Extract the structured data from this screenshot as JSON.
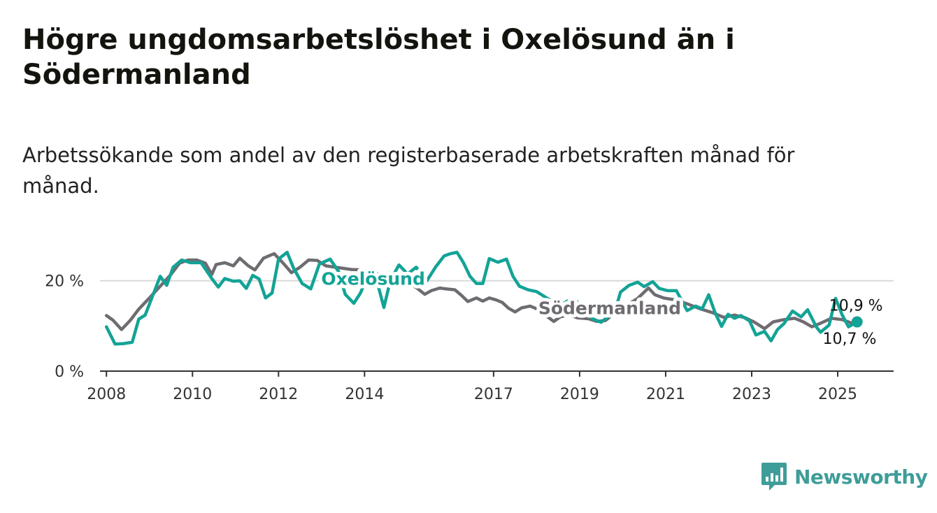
{
  "title": "Högre ungdomsarbetslöshet i Oxelösund än i Södermanland",
  "subtitle": "Arbetssökande som andel av den registerbaserade arbetskraften månad för månad.",
  "logo": {
    "name": "Newsworthy",
    "icon": "bar-chart-bubble-icon",
    "color": "#3f9d99"
  },
  "chart_data": {
    "type": "line",
    "xlabel": "",
    "ylabel": "",
    "xlim": [
      2007.85,
      2026.3
    ],
    "ylim": [
      0,
      28
    ],
    "grid": true,
    "y_ticks": [
      {
        "value": 0,
        "label": "0 %"
      },
      {
        "value": 20,
        "label": "20 %"
      }
    ],
    "x_ticks": [
      {
        "value": 2008.0,
        "label": "2008"
      },
      {
        "value": 2010.0,
        "label": "2010"
      },
      {
        "value": 2012.0,
        "label": "2012"
      },
      {
        "value": 2014.0,
        "label": "2014"
      },
      {
        "value": 2017.0,
        "label": "2017"
      },
      {
        "value": 2019.0,
        "label": "2019"
      },
      {
        "value": 2021.0,
        "label": "2021"
      },
      {
        "value": 2023.0,
        "label": "2023"
      },
      {
        "value": 2025.0,
        "label": "2025"
      }
    ],
    "series": [
      {
        "name": "Södermanland",
        "color": "#6f6c71",
        "end_label": "10,7 %",
        "points": [
          [
            2008.0,
            12.3
          ],
          [
            2008.15,
            11.3
          ],
          [
            2008.35,
            9.2
          ],
          [
            2008.55,
            11.2
          ],
          [
            2008.75,
            13.7
          ],
          [
            2009.0,
            16.2
          ],
          [
            2009.25,
            18.8
          ],
          [
            2009.5,
            21.4
          ],
          [
            2009.7,
            23.9
          ],
          [
            2009.9,
            24.6
          ],
          [
            2010.1,
            24.6
          ],
          [
            2010.3,
            23.9
          ],
          [
            2010.45,
            21.4
          ],
          [
            2010.55,
            23.6
          ],
          [
            2010.75,
            24.0
          ],
          [
            2010.95,
            23.3
          ],
          [
            2011.1,
            25.0
          ],
          [
            2011.3,
            23.3
          ],
          [
            2011.45,
            22.4
          ],
          [
            2011.65,
            25.0
          ],
          [
            2011.9,
            26.0
          ],
          [
            2012.1,
            24.0
          ],
          [
            2012.3,
            21.8
          ],
          [
            2012.5,
            23.0
          ],
          [
            2012.7,
            24.6
          ],
          [
            2012.9,
            24.5
          ],
          [
            2013.1,
            23.3
          ],
          [
            2013.4,
            22.9
          ],
          [
            2013.7,
            22.5
          ],
          [
            2014.0,
            22.4
          ],
          [
            2014.3,
            21.6
          ],
          [
            2014.6,
            21.0
          ],
          [
            2014.9,
            20.0
          ],
          [
            2015.2,
            18.5
          ],
          [
            2015.4,
            17.0
          ],
          [
            2015.55,
            17.8
          ],
          [
            2015.75,
            18.4
          ],
          [
            2015.9,
            18.2
          ],
          [
            2016.1,
            18.0
          ],
          [
            2016.25,
            16.8
          ],
          [
            2016.4,
            15.4
          ],
          [
            2016.6,
            16.2
          ],
          [
            2016.75,
            15.5
          ],
          [
            2016.9,
            16.2
          ],
          [
            2017.05,
            15.8
          ],
          [
            2017.2,
            15.2
          ],
          [
            2017.35,
            13.9
          ],
          [
            2017.5,
            13.1
          ],
          [
            2017.65,
            14.0
          ],
          [
            2017.85,
            14.4
          ],
          [
            2018.0,
            13.8
          ],
          [
            2018.2,
            12.4
          ],
          [
            2018.4,
            11.0
          ],
          [
            2018.55,
            12.0
          ],
          [
            2018.75,
            12.5
          ],
          [
            2018.95,
            11.8
          ],
          [
            2019.2,
            11.6
          ],
          [
            2019.4,
            11.0
          ],
          [
            2019.6,
            11.2
          ],
          [
            2019.8,
            12.7
          ],
          [
            2020.1,
            14.6
          ],
          [
            2020.35,
            16.1
          ],
          [
            2020.6,
            18.4
          ],
          [
            2020.75,
            16.9
          ],
          [
            2020.95,
            16.2
          ],
          [
            2021.2,
            15.8
          ],
          [
            2021.5,
            14.9
          ],
          [
            2021.8,
            13.8
          ],
          [
            2022.1,
            12.9
          ],
          [
            2022.35,
            11.9
          ],
          [
            2022.6,
            12.4
          ],
          [
            2022.85,
            11.8
          ],
          [
            2023.05,
            10.9
          ],
          [
            2023.3,
            9.4
          ],
          [
            2023.5,
            10.9
          ],
          [
            2023.75,
            11.4
          ],
          [
            2024.0,
            11.7
          ],
          [
            2024.2,
            10.9
          ],
          [
            2024.4,
            9.8
          ],
          [
            2024.6,
            10.6
          ],
          [
            2024.85,
            11.7
          ],
          [
            2025.1,
            11.4
          ],
          [
            2025.3,
            10.7
          ]
        ]
      },
      {
        "name": "Oxelösund",
        "color": "#13a396",
        "end_label": "10,9 %",
        "points": [
          [
            2008.0,
            9.8
          ],
          [
            2008.2,
            6.0
          ],
          [
            2008.4,
            6.1
          ],
          [
            2008.6,
            6.4
          ],
          [
            2008.75,
            11.5
          ],
          [
            2008.9,
            12.4
          ],
          [
            2009.1,
            17.3
          ],
          [
            2009.25,
            21.0
          ],
          [
            2009.4,
            19.0
          ],
          [
            2009.55,
            23.0
          ],
          [
            2009.75,
            24.6
          ],
          [
            2009.95,
            24.0
          ],
          [
            2010.2,
            24.0
          ],
          [
            2010.45,
            20.5
          ],
          [
            2010.6,
            18.6
          ],
          [
            2010.75,
            20.5
          ],
          [
            2010.95,
            19.9
          ],
          [
            2011.1,
            20.0
          ],
          [
            2011.25,
            18.3
          ],
          [
            2011.4,
            21.2
          ],
          [
            2011.55,
            20.4
          ],
          [
            2011.7,
            16.2
          ],
          [
            2011.85,
            17.3
          ],
          [
            2012.0,
            24.8
          ],
          [
            2012.2,
            26.3
          ],
          [
            2012.35,
            22.8
          ],
          [
            2012.55,
            19.4
          ],
          [
            2012.75,
            18.2
          ],
          [
            2012.95,
            23.7
          ],
          [
            2013.2,
            24.8
          ],
          [
            2013.4,
            22.0
          ],
          [
            2013.55,
            17.0
          ],
          [
            2013.75,
            15.0
          ],
          [
            2013.9,
            17.2
          ],
          [
            2014.1,
            21.5
          ],
          [
            2014.3,
            19.5
          ],
          [
            2014.45,
            14.1
          ],
          [
            2014.6,
            20.0
          ],
          [
            2014.8,
            23.5
          ],
          [
            2015.0,
            21.5
          ],
          [
            2015.2,
            23.0
          ],
          [
            2015.45,
            20.0
          ],
          [
            2015.65,
            23.0
          ],
          [
            2015.85,
            25.5
          ],
          [
            2016.0,
            26.0
          ],
          [
            2016.15,
            26.3
          ],
          [
            2016.3,
            24.0
          ],
          [
            2016.45,
            21.0
          ],
          [
            2016.6,
            19.4
          ],
          [
            2016.75,
            19.4
          ],
          [
            2016.9,
            24.9
          ],
          [
            2017.1,
            24.1
          ],
          [
            2017.3,
            24.8
          ],
          [
            2017.45,
            21.0
          ],
          [
            2017.6,
            18.8
          ],
          [
            2017.8,
            18.0
          ],
          [
            2018.0,
            17.6
          ],
          [
            2018.2,
            16.4
          ],
          [
            2018.35,
            15.5
          ],
          [
            2018.55,
            14.5
          ],
          [
            2018.75,
            15.7
          ],
          [
            2018.9,
            15.8
          ],
          [
            2019.1,
            13.4
          ],
          [
            2019.3,
            11.6
          ],
          [
            2019.5,
            10.8
          ],
          [
            2019.65,
            12.0
          ],
          [
            2019.8,
            12.5
          ],
          [
            2019.95,
            17.5
          ],
          [
            2020.15,
            19.0
          ],
          [
            2020.35,
            19.7
          ],
          [
            2020.5,
            18.7
          ],
          [
            2020.7,
            19.8
          ],
          [
            2020.85,
            18.3
          ],
          [
            2021.05,
            17.8
          ],
          [
            2021.25,
            17.8
          ],
          [
            2021.5,
            13.4
          ],
          [
            2021.7,
            14.4
          ],
          [
            2021.85,
            13.8
          ],
          [
            2022.0,
            16.9
          ],
          [
            2022.15,
            12.9
          ],
          [
            2022.3,
            9.9
          ],
          [
            2022.45,
            12.6
          ],
          [
            2022.6,
            11.7
          ],
          [
            2022.75,
            12.3
          ],
          [
            2022.95,
            11.1
          ],
          [
            2023.1,
            8.0
          ],
          [
            2023.3,
            8.8
          ],
          [
            2023.45,
            6.7
          ],
          [
            2023.6,
            9.2
          ],
          [
            2023.75,
            10.5
          ],
          [
            2023.95,
            13.3
          ],
          [
            2024.15,
            12.0
          ],
          [
            2024.3,
            13.6
          ],
          [
            2024.5,
            9.8
          ],
          [
            2024.6,
            8.6
          ],
          [
            2024.8,
            10.2
          ],
          [
            2024.95,
            16.1
          ],
          [
            2025.1,
            12.5
          ],
          [
            2025.25,
            9.8
          ],
          [
            2025.45,
            10.9
          ]
        ]
      }
    ],
    "inline_labels": [
      {
        "series": "Oxelösund",
        "text": "Oxelösund",
        "color": "#13a396",
        "at": [
          2014.2,
          20.5
        ]
      },
      {
        "series": "Södermanland",
        "text": "Södermanland",
        "color": "#6f6c71",
        "at": [
          2019.7,
          14.0
        ]
      }
    ]
  }
}
